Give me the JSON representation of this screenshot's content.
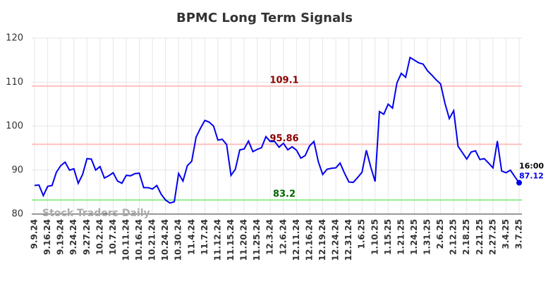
{
  "chart_data": {
    "type": "line",
    "title": "BPMC Long Term Signals",
    "categories": [
      "9.9.24",
      null,
      null,
      "9.16.24",
      null,
      null,
      "9.19.24",
      null,
      null,
      "9.24.24",
      null,
      null,
      "9.27.24",
      null,
      null,
      "10.2.24",
      null,
      null,
      "10.7.24",
      null,
      null,
      "10.11.24",
      null,
      null,
      "10.16.24",
      null,
      null,
      "10.21.24",
      null,
      null,
      "10.24.24",
      null,
      null,
      "10.30.24",
      null,
      null,
      "11.4.24",
      null,
      null,
      "11.7.24",
      null,
      null,
      "11.12.24",
      null,
      null,
      "11.15.24",
      null,
      null,
      "11.20.24",
      null,
      null,
      "11.25.24",
      null,
      null,
      "12.3.24",
      null,
      null,
      "12.6.24",
      null,
      null,
      "12.11.24",
      null,
      null,
      "12.16.24",
      null,
      null,
      "12.19.24",
      null,
      null,
      "12.24.24",
      null,
      null,
      "12.31.24",
      null,
      null,
      "1.6.25",
      null,
      null,
      "1.10.25",
      null,
      null,
      "1.15.25",
      null,
      null,
      "1.21.25",
      null,
      null,
      "1.24.25",
      null,
      null,
      "1.31.25",
      null,
      null,
      "2.6.25",
      null,
      null,
      "2.12.25",
      null,
      null,
      "2.18.25",
      null,
      null,
      "2.21.25",
      null,
      null,
      "2.27.25",
      null,
      null,
      "3.4.25",
      null,
      null,
      "3.7.25"
    ],
    "values": [
      86.5,
      86.6,
      84.2,
      86.3,
      86.5,
      89.5,
      91,
      91.8,
      90,
      90.3,
      87,
      89,
      92.6,
      92.5,
      90,
      90.8,
      88.2,
      88.7,
      89.4,
      87.5,
      87,
      88.8,
      88.7,
      89.2,
      89.3,
      86,
      86,
      85.7,
      86.5,
      84.5,
      83.2,
      82.5,
      82.8,
      89.2,
      87.5,
      91,
      92,
      97.5,
      99.5,
      101.3,
      100.9,
      100,
      96.8,
      97,
      95.8,
      88.8,
      90.2,
      94.6,
      94.8,
      96.6,
      94.2,
      94.7,
      95.1,
      97.6,
      96.5,
      96.5,
      95.2,
      96.1,
      94.6,
      95.3,
      94.5,
      92.7,
      93.3,
      95.5,
      96.5,
      91.9,
      89,
      90.2,
      90.4,
      90.5,
      91.6,
      89.3,
      87.3,
      87.2,
      88.3,
      89.5,
      94.5,
      90.7,
      87.4,
      103.3,
      102.7,
      105,
      104.1,
      109.8,
      112,
      111.1,
      115.6,
      115,
      114.4,
      114.1,
      112.6,
      111.6,
      110.5,
      109.6,
      105.2,
      101.7,
      103.5,
      95.4,
      94,
      92.5,
      94.1,
      94.4,
      92.4,
      92.6,
      91.6,
      90.5,
      96.6,
      89.8,
      89.4,
      90,
      88.5,
      87.12
    ],
    "color": "#0000ee",
    "ylim": [
      80,
      120
    ],
    "yticks": [
      80,
      90,
      100,
      110,
      120
    ],
    "grid": true,
    "hlines": [
      {
        "value": 109.1,
        "color": "#ffc0c0",
        "label_color": "#8b0000"
      },
      {
        "value": 95.86,
        "color": "#ffc0c0",
        "label_color": "#8b0000"
      },
      {
        "value": 83.2,
        "color": "#90ee90",
        "label_color": "#006400"
      }
    ],
    "last_time": "16:00",
    "watermark": "Stock Traders Daily"
  }
}
